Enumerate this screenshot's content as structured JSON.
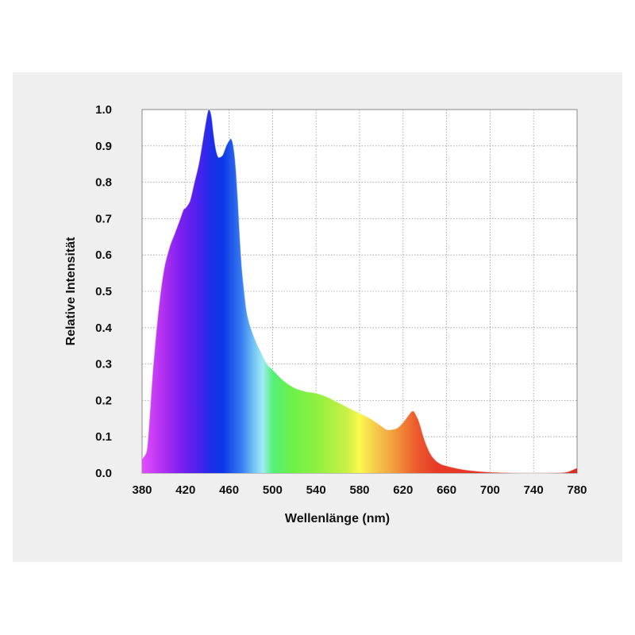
{
  "chart_data": {
    "type": "area",
    "xlabel": "Wellenlänge (nm)",
    "ylabel": "Relative Intensität",
    "xlim": [
      380,
      780
    ],
    "ylim": [
      0,
      1.0
    ],
    "x_ticks": [
      380,
      420,
      460,
      500,
      540,
      580,
      620,
      660,
      700,
      740,
      780
    ],
    "x_tick_labels": [
      "380",
      "420",
      "460",
      "500",
      "540",
      "580",
      "620",
      "660",
      "700",
      "740",
      "780"
    ],
    "y_ticks": [
      0,
      0.1,
      0.2,
      0.3,
      0.4,
      0.5,
      0.6,
      0.7,
      0.8,
      0.9,
      1.0
    ],
    "y_tick_labels": [
      "0.0",
      "0.1",
      "0.2",
      "0.3",
      "0.4",
      "0.5",
      "0.6",
      "0.7",
      "0.8",
      "0.9",
      "1.0"
    ],
    "grid": true,
    "fill": "visible-spectrum gradient",
    "series": [
      {
        "x": [
          380,
          384,
          386,
          390,
          395,
          400,
          405,
          410,
          415,
          418,
          420,
          424,
          428,
          432,
          436,
          440,
          442,
          444,
          446,
          448,
          450,
          452,
          454,
          456,
          458,
          460,
          462,
          464,
          466,
          468,
          470,
          472,
          474,
          476,
          478,
          480,
          485,
          490,
          495,
          500,
          510,
          520,
          530,
          540,
          550,
          560,
          570,
          580,
          590,
          600,
          605,
          610,
          615,
          620,
          625,
          628,
          630,
          632,
          635,
          640,
          645,
          650,
          655,
          660,
          670,
          680,
          690,
          700,
          720,
          740,
          760,
          770,
          775,
          780
        ],
        "values": [
          0.04,
          0.06,
          0.12,
          0.29,
          0.45,
          0.56,
          0.62,
          0.66,
          0.7,
          0.725,
          0.73,
          0.75,
          0.8,
          0.85,
          0.92,
          0.99,
          1.0,
          0.98,
          0.93,
          0.89,
          0.87,
          0.87,
          0.875,
          0.89,
          0.905,
          0.915,
          0.92,
          0.9,
          0.85,
          0.76,
          0.65,
          0.56,
          0.5,
          0.45,
          0.42,
          0.4,
          0.36,
          0.33,
          0.3,
          0.285,
          0.255,
          0.235,
          0.225,
          0.22,
          0.21,
          0.195,
          0.18,
          0.165,
          0.15,
          0.13,
          0.12,
          0.12,
          0.125,
          0.14,
          0.16,
          0.17,
          0.17,
          0.16,
          0.14,
          0.09,
          0.055,
          0.035,
          0.025,
          0.02,
          0.013,
          0.008,
          0.005,
          0.003,
          0.001,
          0.0005,
          0.001,
          0.003,
          0.008,
          0.015
        ]
      }
    ],
    "colors": {
      "background": "#efefef",
      "plot_background": "#ffffff",
      "grid": "#999999",
      "text": "#111111"
    }
  }
}
